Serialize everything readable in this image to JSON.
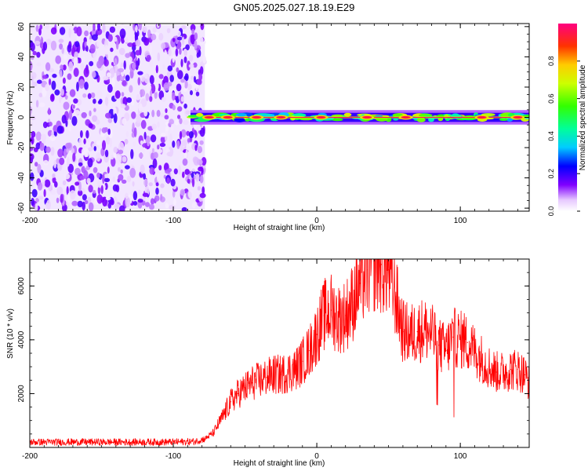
{
  "title": "GN05.2025.027.18.19.E29",
  "chart_data": [
    {
      "type": "heatmap",
      "xlabel": "Height of straight line (km)",
      "ylabel": "Frequency (Hz)",
      "xlim": [
        -200,
        148
      ],
      "ylim": [
        -62,
        62
      ],
      "xticks": [
        -200,
        -100,
        0,
        100
      ],
      "yticks": [
        -60,
        -40,
        -20,
        0,
        20,
        40,
        60
      ],
      "colorbar": {
        "label": "Normalized spectral amplitude",
        "range": [
          0,
          1
        ],
        "ticks": [
          "0.0",
          "0.2",
          "0.4",
          "0.6",
          "0.8"
        ]
      },
      "regions": [
        {
          "description_of_data": "noise",
          "x_range": [
            -200,
            -78
          ],
          "freq_range": [
            -60,
            60
          ],
          "amplitude_range": [
            0.0,
            0.25
          ]
        },
        {
          "description_of_data": "signal_band",
          "x_range": [
            -88,
            148
          ],
          "freq_center": 0,
          "freq_halfwidth": 3,
          "peak_amplitude": 1.0
        },
        {
          "description_of_data": "strong_spots",
          "x_values": [
            -75,
            -62,
            -42,
            -25,
            3,
            35,
            62,
            115,
            140
          ],
          "freq": 0,
          "amplitude": 0.95
        }
      ],
      "grid": false
    },
    {
      "type": "line",
      "xlabel": "Height of straight line (km)",
      "ylabel": "SNR (10 * v/v)",
      "xlim": [
        -200,
        148
      ],
      "ylim": [
        0,
        7000
      ],
      "xticks": [
        -200,
        -100,
        0,
        100
      ],
      "yticks": [
        2000,
        4000,
        6000
      ],
      "grid": false,
      "series": [
        {
          "color": "#ff0000",
          "x": [
            -200,
            -180,
            -160,
            -140,
            -120,
            -100,
            -85,
            -78,
            -72,
            -65,
            -60,
            -55,
            -50,
            -45,
            -40,
            -35,
            -30,
            -25,
            -20,
            -15,
            -10,
            -5,
            0,
            5,
            10,
            15,
            20,
            25,
            30,
            35,
            40,
            45,
            50,
            55,
            60,
            65,
            70,
            75,
            80,
            85,
            90,
            95,
            100,
            105,
            110,
            115,
            120,
            125,
            130,
            135,
            140,
            145,
            148
          ],
          "y": [
            200,
            200,
            200,
            200,
            200,
            200,
            220,
            320,
            550,
            1200,
            1700,
            2000,
            2200,
            2400,
            2500,
            2600,
            2700,
            2700,
            2800,
            2900,
            3200,
            3600,
            4200,
            4900,
            5100,
            4800,
            4900,
            5400,
            6100,
            6600,
            6900,
            6800,
            6600,
            5600,
            4300,
            4200,
            4300,
            4400,
            4200,
            3800,
            3600,
            4100,
            4000,
            3900,
            3600,
            3300,
            3000,
            2800,
            2800,
            2900,
            2900,
            2700,
            2400
          ]
        }
      ]
    }
  ]
}
